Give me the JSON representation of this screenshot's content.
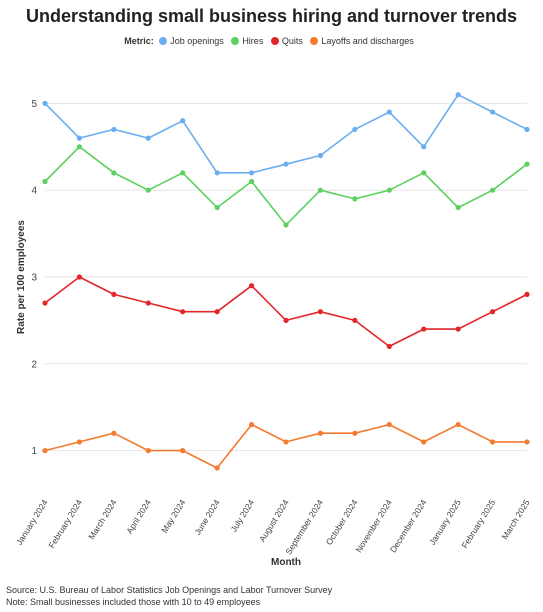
{
  "title": "Understanding small business hiring and turnover trends",
  "legend": {
    "title": "Metric:",
    "items": [
      {
        "label": "Job openings",
        "color": "#6aaef0"
      },
      {
        "label": "Hires",
        "color": "#5cd160"
      },
      {
        "label": "Quits",
        "color": "#e3262a"
      },
      {
        "label": "Layoffs and discharges",
        "color": "#f47b2e"
      }
    ]
  },
  "chart_data": {
    "type": "line",
    "title": "Understanding small business hiring and turnover trends",
    "xlabel": "Month",
    "ylabel": "Rate per 100 employees",
    "ylim": [
      0.5,
      5.5
    ],
    "yticks": [
      1,
      2,
      3,
      4,
      5
    ],
    "grid": true,
    "legend_position": "top",
    "categories": [
      "January 2024",
      "February 2024",
      "March 2024",
      "April 2024",
      "May 2024",
      "June 2024",
      "July 2024",
      "August 2024",
      "September 2024",
      "October 2024",
      "November 2024",
      "December 2024",
      "January 2025",
      "February 2025",
      "March 2025"
    ],
    "series": [
      {
        "name": "Job openings",
        "color": "#6aaef0",
        "values": [
          5.0,
          4.6,
          4.7,
          4.6,
          4.8,
          4.2,
          4.2,
          4.3,
          4.4,
          4.7,
          4.9,
          4.5,
          5.1,
          4.9,
          4.7
        ]
      },
      {
        "name": "Hires",
        "color": "#5cd160",
        "values": [
          4.1,
          4.5,
          4.2,
          4.0,
          4.2,
          3.8,
          4.1,
          3.6,
          4.0,
          3.9,
          4.0,
          4.2,
          3.8,
          4.0,
          4.3
        ]
      },
      {
        "name": "Quits",
        "color": "#e3262a",
        "values": [
          2.7,
          3.0,
          2.8,
          2.7,
          2.6,
          2.6,
          2.9,
          2.5,
          2.6,
          2.5,
          2.2,
          2.4,
          2.4,
          2.6,
          2.8
        ]
      },
      {
        "name": "Layoffs and discharges",
        "color": "#f47b2e",
        "values": [
          1.0,
          1.1,
          1.2,
          1.0,
          1.0,
          0.8,
          1.3,
          1.1,
          1.2,
          1.2,
          1.3,
          1.1,
          1.3,
          1.1,
          1.1
        ]
      }
    ]
  },
  "footer": {
    "source": "Source: U.S. Bureau of Labor Statistics Job Openings and Labor Turnover Survey",
    "note": "Note: Small businesses included those with 10 to 49 employees"
  }
}
